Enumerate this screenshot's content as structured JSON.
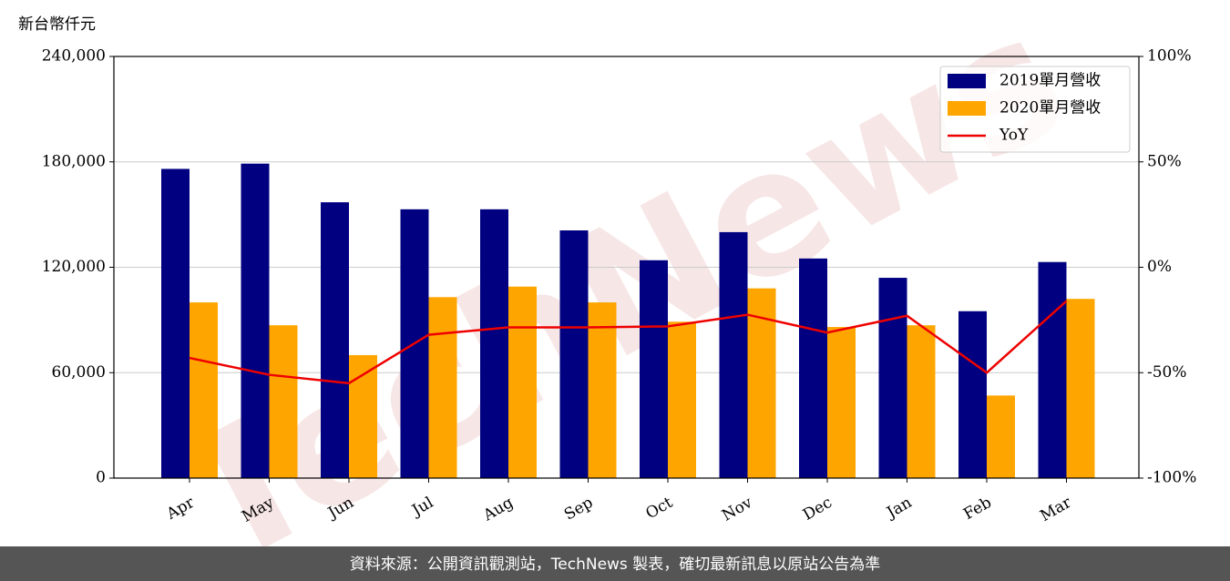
{
  "chart_data": {
    "type": "bar",
    "y_label": "新台幣仟元",
    "watermark": "TechNews",
    "source": "資料來源：公開資訊觀測站，TechNews 製表，確切最新訊息以原站公告為準",
    "categories": [
      "Apr",
      "May",
      "Jun",
      "Jul",
      "Aug",
      "Sep",
      "Oct",
      "Nov",
      "Dec",
      "Jan",
      "Feb",
      "Mar"
    ],
    "series": [
      {
        "name": "2019單月營收",
        "color": "#000080",
        "values": [
          176000,
          179000,
          157000,
          153000,
          153000,
          141000,
          124000,
          140000,
          125000,
          114000,
          95000,
          123000
        ]
      },
      {
        "name": "2020單月營收",
        "color": "#ffa500",
        "values": [
          100000,
          87000,
          70000,
          103000,
          109000,
          100000,
          89000,
          108000,
          86000,
          87000,
          47000,
          102000
        ]
      },
      {
        "name": "YoY",
        "color": "#ee0000",
        "type": "line",
        "axis": "y2",
        "values": [
          -43,
          -51,
          -55,
          -32,
          -28.5,
          -28.5,
          -28,
          -22.5,
          -31,
          -23,
          -50,
          -16
        ]
      }
    ],
    "ylim": [
      0,
      240000
    ],
    "yticks": [
      {
        "value": 0,
        "label": "0"
      },
      {
        "value": 60000,
        "label": "60,000"
      },
      {
        "value": 120000,
        "label": "120,000"
      },
      {
        "value": 180000,
        "label": "180,000"
      },
      {
        "value": 240000,
        "label": "240,000"
      }
    ],
    "y2lim": [
      -100,
      100
    ],
    "y2ticks": [
      {
        "value": -100,
        "label": "-100%"
      },
      {
        "value": -50,
        "label": "-50%"
      },
      {
        "value": 0,
        "label": "0%"
      },
      {
        "value": 50,
        "label": "50%"
      },
      {
        "value": 100,
        "label": "100%"
      }
    ],
    "grid": true,
    "legend": "upper right"
  }
}
